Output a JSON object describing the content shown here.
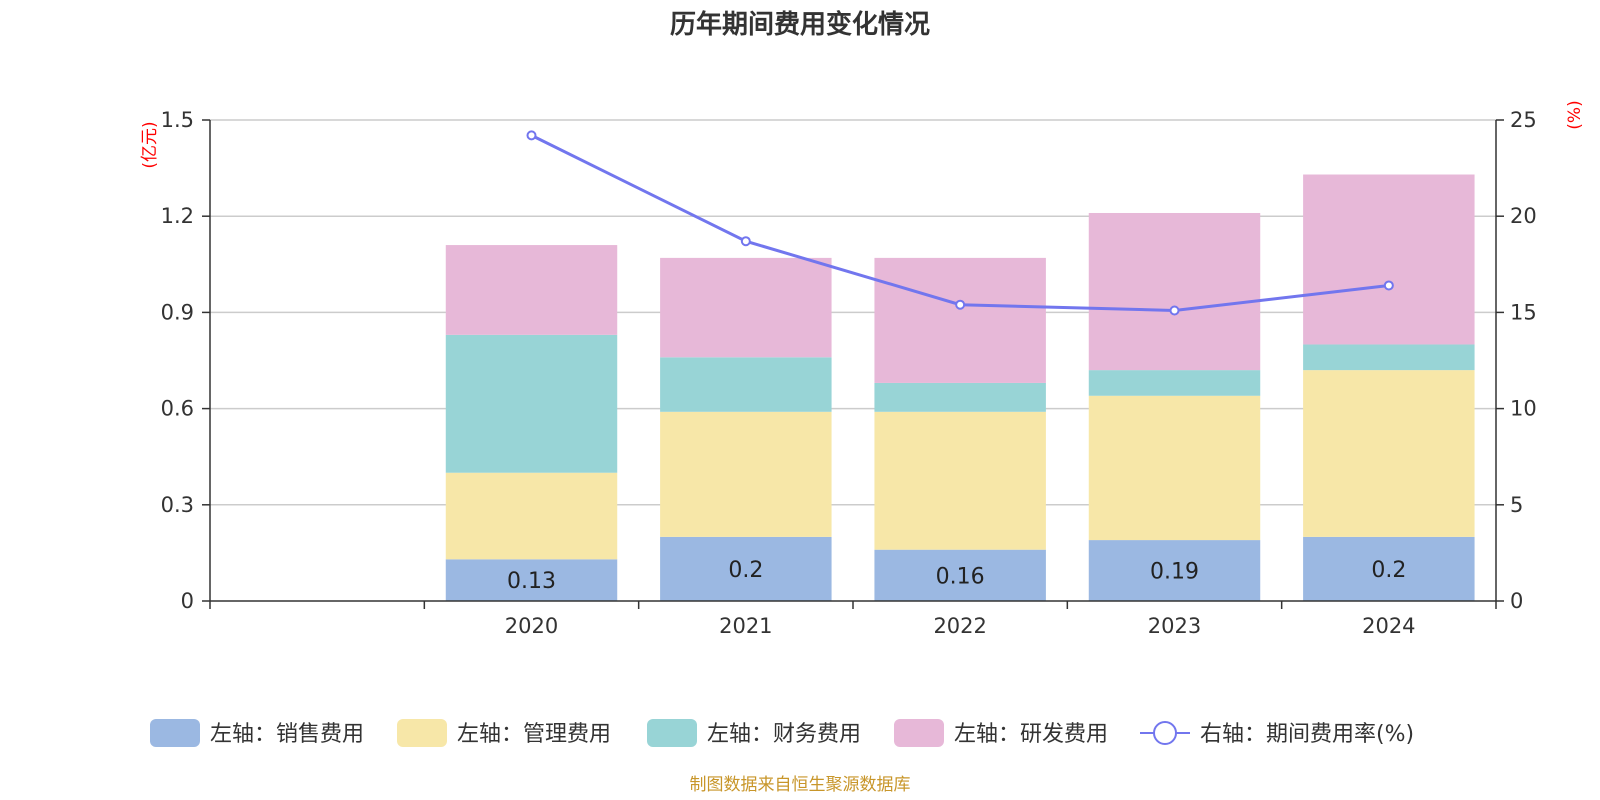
{
  "chart_data": {
    "type": "bar",
    "stacked": true,
    "title": "历年期间费用变化情况",
    "categories": [
      "2020",
      "2021",
      "2022",
      "2023",
      "2024"
    ],
    "left_axis": {
      "unit": "(亿元)",
      "ylim": [
        0,
        1.5
      ],
      "ticks": [
        "0",
        "0.3",
        "0.6",
        "0.9",
        "1.2",
        "1.5"
      ],
      "tick_values": [
        0,
        0.3,
        0.6,
        0.9,
        1.2,
        1.5
      ]
    },
    "right_axis": {
      "unit": "(%)",
      "ylim": [
        0,
        25
      ],
      "ticks": [
        "0",
        "5",
        "10",
        "15",
        "20",
        "25"
      ],
      "tick_values": [
        0,
        5,
        10,
        15,
        20,
        25
      ]
    },
    "grid": true,
    "series": [
      {
        "name": "左轴：销售费用",
        "axis": "left",
        "kind": "bar",
        "color": "#9bb8e2",
        "values": [
          0.13,
          0.2,
          0.16,
          0.19,
          0.2
        ],
        "labels": [
          "0.13",
          "0.2",
          "0.16",
          "0.19",
          "0.2"
        ]
      },
      {
        "name": "左轴：管理费用",
        "axis": "left",
        "kind": "bar",
        "color": "#f7e7a8",
        "values": [
          0.27,
          0.39,
          0.43,
          0.45,
          0.52
        ]
      },
      {
        "name": "左轴：财务费用",
        "axis": "left",
        "kind": "bar",
        "color": "#98d4d6",
        "values": [
          0.43,
          0.17,
          0.09,
          0.08,
          0.08
        ]
      },
      {
        "name": "左轴：研发费用",
        "axis": "left",
        "kind": "bar",
        "color": "#e7b8d8",
        "values": [
          0.28,
          0.31,
          0.39,
          0.49,
          0.53
        ]
      },
      {
        "name": "右轴：期间费用率(%)",
        "axis": "right",
        "kind": "line",
        "color": "#7276ee",
        "values": [
          24.2,
          18.7,
          15.4,
          15.1,
          16.4
        ]
      }
    ],
    "legend_position": "bottom",
    "source": "制图数据来自恒生聚源数据库"
  }
}
